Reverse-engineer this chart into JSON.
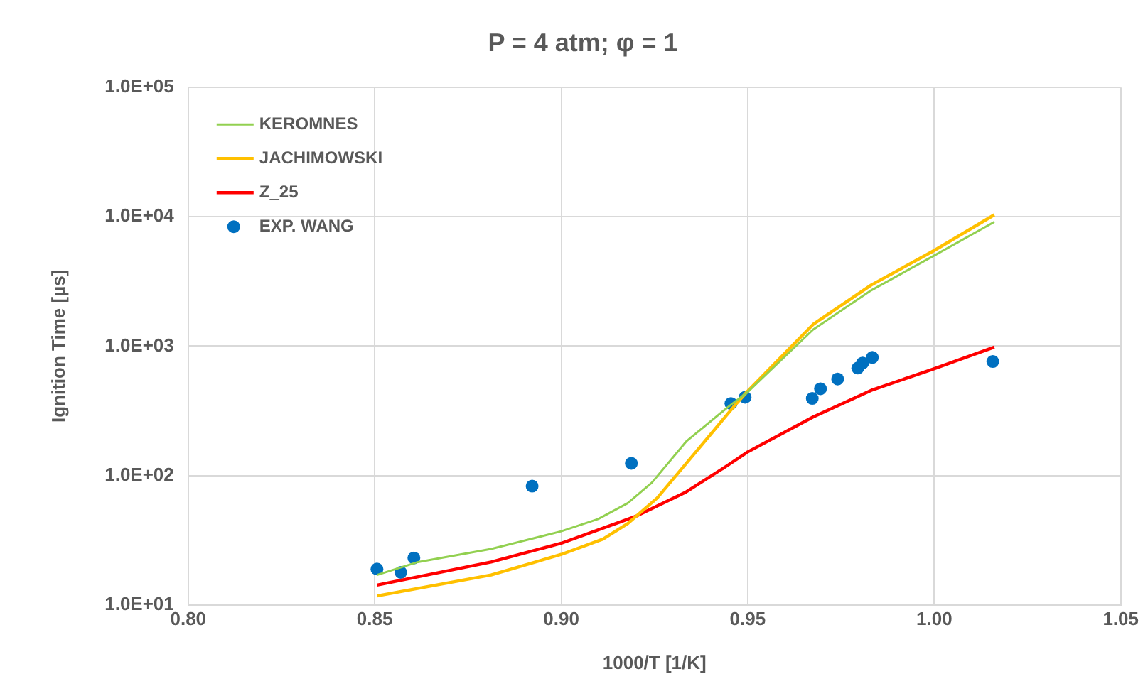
{
  "chart_data": {
    "type": "line",
    "title": "P = 4 atm; φ = 1",
    "xlabel": "1000/T [1/K]",
    "ylabel": "Ignition Time [µs]",
    "log": "y",
    "grid": true,
    "legend": "top left",
    "line_style": "solid",
    "xlim": [
      0.8,
      1.05
    ],
    "xticks": [
      {
        "value": 0.8,
        "label": "0.80"
      },
      {
        "value": 0.85,
        "label": "0.85"
      },
      {
        "value": 0.9,
        "label": "0.90"
      },
      {
        "value": 0.95,
        "label": "0.95"
      },
      {
        "value": 1.0,
        "label": "1.00"
      },
      {
        "value": 1.05,
        "label": "1.05"
      }
    ],
    "ylim": [
      10,
      100000
    ],
    "yticks": [
      {
        "value": 10,
        "label": "1.0E+01"
      },
      {
        "value": 100,
        "label": "1.0E+02"
      },
      {
        "value": 1000,
        "label": "1.0E+03"
      },
      {
        "value": 10000,
        "label": "1.0E+04"
      },
      {
        "value": 100000,
        "label": "1.0E+05"
      }
    ],
    "series": [
      {
        "name": "KEROMNES",
        "type": "line",
        "marker": "none",
        "color": "#92d050",
        "x": [
          0.8506,
          0.8616,
          0.8812,
          0.9,
          0.9099,
          0.9178,
          0.9243,
          0.9335,
          0.9452,
          0.9498,
          0.9675,
          0.9831,
          0.9999,
          1.0161
        ],
        "values": [
          17,
          21.4,
          27,
          37,
          46,
          61,
          88,
          183,
          347,
          437,
          1340,
          2700,
          5000,
          9130
        ]
      },
      {
        "name": "JACHIMOWSKI",
        "type": "line",
        "marker": "none",
        "color": "#ffc000",
        "x": [
          0.8506,
          0.8812,
          0.9,
          0.9112,
          0.9178,
          0.9257,
          0.9361,
          0.9465,
          0.9498,
          0.9675,
          0.9831,
          0.9999,
          1.0161
        ],
        "values": [
          11.7,
          17,
          24.5,
          32.2,
          42.4,
          66.8,
          152,
          347,
          443,
          1470,
          2970,
          5470,
          10360
        ]
      },
      {
        "name": "Z_25",
        "type": "line",
        "marker": "none",
        "color": "#ff0000",
        "x": [
          0.8506,
          0.8812,
          0.9,
          0.9202,
          0.9335,
          0.9439,
          0.95,
          0.9675,
          0.9831,
          0.9999,
          1.0161
        ],
        "values": [
          14.2,
          21.4,
          29.9,
          48.6,
          74.6,
          116,
          152,
          283,
          455,
          668,
          982
        ]
      },
      {
        "name": "EXP. WANG",
        "type": "scatter",
        "marker": "circle",
        "color": "#0070c0",
        "x": [
          0.8506,
          0.857,
          0.8605,
          0.8922,
          0.9188,
          0.9455,
          0.9493,
          0.9673,
          0.9695,
          0.9741,
          0.9795,
          0.9808,
          0.9834,
          1.0157
        ],
        "values": [
          18.9,
          17.8,
          23,
          82.6,
          124,
          360,
          402,
          394,
          468,
          557,
          676,
          740,
          818,
          760
        ]
      }
    ]
  }
}
